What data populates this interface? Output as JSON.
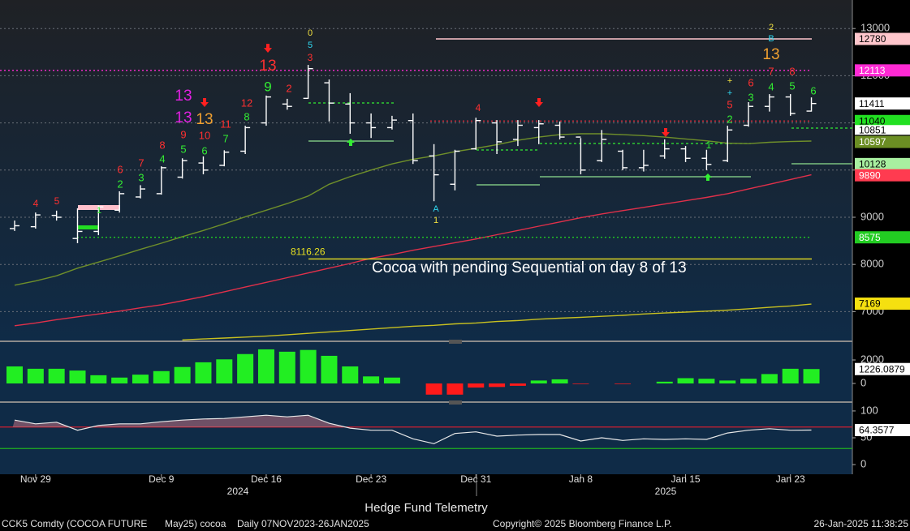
{
  "chart_data": [
    {
      "type": "ohlc",
      "annotation": "Cocoa with pending Sequential on day 8 of 13",
      "categories": [
        null,
        "Nov 29",
        null,
        null,
        null,
        null,
        null,
        "Dec 9",
        null,
        null,
        null,
        null,
        "Dec 16",
        null,
        null,
        null,
        null,
        "Dec 23",
        null,
        null,
        null,
        null,
        "Dec 31",
        null,
        null,
        null,
        null,
        "Jan 8",
        null,
        null,
        null,
        null,
        "Jan 15",
        null,
        null,
        null,
        null,
        "Jan 23",
        null
      ],
      "open": [
        8760,
        8800,
        9040,
        8550,
        8700,
        9150,
        9430,
        9500,
        9850,
        10150,
        10100,
        10400,
        11000,
        11400,
        11520,
        11850,
        11400,
        11000,
        10900,
        11050,
        10300,
        9700,
        10450,
        11000,
        10650,
        10900,
        10950,
        10700,
        10200,
        10400,
        10050,
        10300,
        10450,
        10250,
        10200,
        10950,
        11350,
        11550,
        11250
      ],
      "high": [
        8930,
        9100,
        9140,
        9190,
        9250,
        9550,
        9680,
        10080,
        10250,
        10290,
        10420,
        10940,
        11580,
        11510,
        12230,
        11920,
        11630,
        11200,
        11150,
        11200,
        10550,
        10430,
        11110,
        11060,
        11060,
        11060,
        11030,
        10680,
        10850,
        10430,
        10430,
        10650,
        10510,
        10430,
        10940,
        11440,
        11610,
        11610,
        11540
      ],
      "low": [
        8710,
        8760,
        8930,
        8450,
        8620,
        9100,
        9400,
        9480,
        9820,
        9910,
        10080,
        10340,
        10940,
        11280,
        11510,
        11030,
        10770,
        10680,
        10860,
        10130,
        9340,
        9570,
        10430,
        10340,
        10510,
        10550,
        10650,
        9910,
        10170,
        10000,
        9970,
        10240,
        10170,
        10000,
        10170,
        10920,
        11240,
        11150,
        11240
      ],
      "close": [
        8820,
        9050,
        9000,
        8700,
        9220,
        9500,
        9600,
        10050,
        10200,
        10000,
        10380,
        10900,
        11550,
        11350,
        12150,
        11420,
        11000,
        10900,
        11060,
        10200,
        9900,
        10400,
        11050,
        10600,
        10950,
        10980,
        10700,
        10000,
        10650,
        10050,
        10100,
        10450,
        10250,
        10120,
        10850,
        11350,
        11550,
        11200,
        11411
      ],
      "color": "#ffffff",
      "lines": [
        {
          "color": "#6f8f2a",
          "values": [
            7560,
            7650,
            7760,
            7920,
            8050,
            8180,
            8320,
            8450,
            8590,
            8720,
            8860,
            9010,
            9150,
            9290,
            9450,
            9700,
            9860,
            10000,
            10130,
            10230,
            10300,
            10390,
            10460,
            10540,
            10630,
            10700,
            10750,
            10770,
            10770,
            10750,
            10730,
            10700,
            10660,
            10620,
            10570,
            10560,
            10590,
            10605,
            10615
          ]
        },
        {
          "color": "#e0304a",
          "values": [
            6700,
            6760,
            6830,
            6890,
            6950,
            7010,
            7080,
            7145,
            7230,
            7320,
            7420,
            7520,
            7620,
            7720,
            7820,
            7920,
            8020,
            8130,
            8210,
            8300,
            8380,
            8460,
            8540,
            8630,
            8720,
            8810,
            8900,
            8990,
            9070,
            9140,
            9210,
            9280,
            9350,
            9420,
            9500,
            9600,
            9700,
            9800,
            9900
          ]
        },
        {
          "color": "#c8c020",
          "values": [
            null,
            null,
            null,
            null,
            null,
            null,
            null,
            null,
            6400,
            6420,
            6440,
            6460,
            6480,
            6510,
            6540,
            6570,
            6600,
            6630,
            6660,
            6690,
            6710,
            6740,
            6760,
            6790,
            6810,
            6840,
            6860,
            6880,
            6900,
            6920,
            6950,
            6970,
            6990,
            7010,
            7030,
            7060,
            7090,
            7120,
            7160
          ]
        }
      ],
      "ylim": [
        6388,
        13605
      ],
      "yticks": [
        7000,
        8000,
        9000,
        10000,
        11000,
        12000,
        13000
      ],
      "grid": true,
      "price_tags": [
        {
          "value": 12780,
          "color": "#ffc6cc",
          "text_color": "#000000",
          "line": "solid"
        },
        {
          "value": 12113,
          "color": "#ff2ad4",
          "text_color": "#ffffff",
          "line": "dotted"
        },
        {
          "value": 11411,
          "color": "#ffffff",
          "text_color": "#000000"
        },
        {
          "value": 11040,
          "color": "#22e022",
          "text_color": "#000000",
          "line": "dotted"
        },
        {
          "value": 10851,
          "color": "#ffffff",
          "text_color": "#000000"
        },
        {
          "value": 10597,
          "color": "#6b8e23",
          "text_color": "#ffffff"
        },
        {
          "value": 10128,
          "color": "#a8f0a0",
          "text_color": "#000000"
        },
        {
          "value": 9890,
          "color": "#ff3b50",
          "text_color": "#ffffff"
        },
        {
          "value": 8575,
          "color": "#22cc22",
          "text_color": "#ffffff",
          "line": "dotted"
        },
        {
          "value": 7169,
          "color": "#f5e010",
          "text_color": "#000000"
        }
      ],
      "levels": [
        {
          "value": 8116.26,
          "color": "#e8e020"
        }
      ],
      "annotations": [
        {
          "text": "4",
          "color": "#ff3030"
        },
        {
          "text": "5",
          "color": "#ff3030"
        },
        {
          "text": "1",
          "color": "#33ee33"
        },
        {
          "text": "2",
          "color": "#33ee33"
        },
        {
          "text": "3",
          "color": "#33ee33"
        },
        {
          "text": "6",
          "color": "#ff3030"
        },
        {
          "text": "7",
          "color": "#ff3030"
        },
        {
          "text": "4",
          "color": "#33ee33"
        },
        {
          "text": "8",
          "color": "#ff3030"
        },
        {
          "text": "5",
          "color": "#33ee33"
        },
        {
          "text": "9",
          "color": "#ff3030"
        },
        {
          "text": "6",
          "color": "#33ee33"
        },
        {
          "text": "10",
          "color": "#ff3030"
        },
        {
          "text": "13",
          "color": "#e020e0"
        },
        {
          "text": "13",
          "color": "#e020e0"
        },
        {
          "text": "13",
          "color": "#f0a030"
        },
        {
          "text": "11",
          "color": "#ff3030"
        },
        {
          "text": "7",
          "color": "#33ee33"
        },
        {
          "text": "12",
          "color": "#ff3030"
        },
        {
          "text": "8",
          "color": "#33ee33"
        },
        {
          "text": "9",
          "color": "#33ee33"
        },
        {
          "text": "13",
          "color": "#ff3030"
        },
        {
          "text": "2",
          "color": "#ff3030"
        },
        {
          "text": "0",
          "color": "#f0e040"
        },
        {
          "text": "5",
          "color": "#30d8f0"
        },
        {
          "text": "3",
          "color": "#ff3030"
        },
        {
          "text": "4",
          "color": "#ff3030"
        },
        {
          "text": "A",
          "color": "#30d8f0"
        },
        {
          "text": "1",
          "color": "#f0e040"
        },
        {
          "text": "1",
          "color": "#33ee33"
        },
        {
          "text": "2",
          "color": "#33ee33"
        },
        {
          "text": "5",
          "color": "#ff3030"
        },
        {
          "text": "+",
          "color": "#30d8f0"
        },
        {
          "text": "+",
          "color": "#f0e040"
        },
        {
          "text": "6",
          "color": "#ff3030"
        },
        {
          "text": "3",
          "color": "#33ee33"
        },
        {
          "text": "7",
          "color": "#ff3030"
        },
        {
          "text": "4",
          "color": "#33ee33"
        },
        {
          "text": "13",
          "color": "#f0a030"
        },
        {
          "text": "2",
          "color": "#f0e040"
        },
        {
          "text": "B",
          "color": "#30d8f0"
        },
        {
          "text": "8",
          "color": "#ff3030"
        },
        {
          "text": "5",
          "color": "#33ee33"
        },
        {
          "text": "6",
          "color": "#33ee33"
        }
      ]
    },
    {
      "type": "bar",
      "values": [
        1450,
        1250,
        1250,
        1100,
        700,
        500,
        750,
        1050,
        1400,
        1800,
        2050,
        2500,
        2900,
        2700,
        2850,
        2350,
        1450,
        600,
        500,
        0,
        -950,
        -950,
        -350,
        -300,
        -200,
        250,
        350,
        -50,
        0,
        -50,
        0,
        150,
        450,
        400,
        250,
        400,
        800,
        1250,
        1226.0879
      ],
      "color": "#22ee22",
      "negative_color": "#ff1a1a",
      "ylim": [
        -1517,
        3517
      ],
      "yticks": [
        0,
        2000
      ],
      "value_tag": {
        "value": 1226.0879,
        "color": "#ffffff"
      }
    },
    {
      "type": "line",
      "values": [
        83,
        76,
        79,
        64,
        73,
        76,
        76,
        80,
        83,
        85,
        86,
        89,
        92,
        89,
        92,
        77,
        68,
        64,
        64,
        48,
        39,
        58,
        61,
        53,
        55,
        56,
        56,
        44,
        50,
        45,
        48,
        47,
        48,
        47,
        59,
        64,
        67,
        64,
        64.3577
      ],
      "color": "#e8e8e8",
      "fill_color": "#c07080",
      "ylim": [
        -18,
        115
      ],
      "yticks": [
        0,
        50,
        100
      ],
      "ref_lines": [
        {
          "value": 70,
          "color": "#d02030"
        },
        {
          "value": 30,
          "color": "#20b020"
        }
      ],
      "value_tag": {
        "value": 64.3577,
        "color": "#ffffff"
      }
    }
  ],
  "year_labels": [
    "2024",
    "2025"
  ],
  "x_axis_title": "Hedge Fund Telemetry",
  "footer": {
    "ticker": "CCK5 Comdty (COCOA FUTURE",
    "contract": "May25) cocoa",
    "range": "Daily 07NOV2023-26JAN2025",
    "copyright": "Copyright© 2025 Bloomberg Finance L.P.",
    "timestamp": "26-Jan-2025 11:38:25"
  }
}
